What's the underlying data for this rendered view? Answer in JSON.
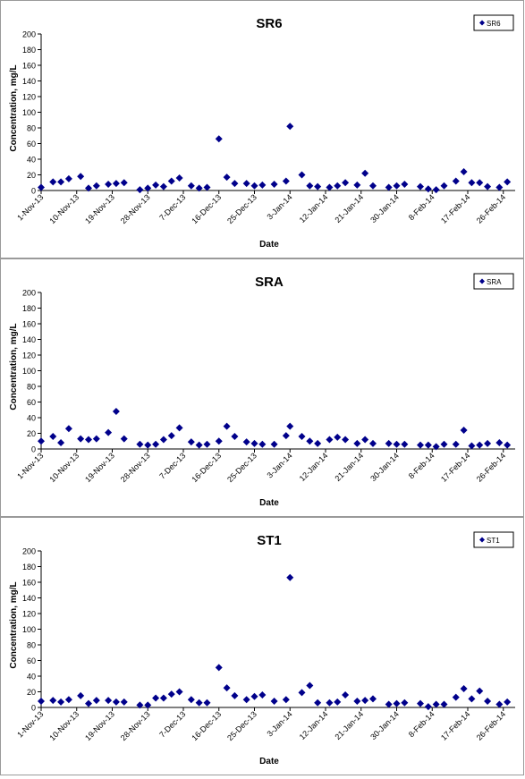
{
  "chart_data": [
    {
      "type": "scatter",
      "title": "SR6",
      "xlabel": "Date",
      "ylabel": "Concentration, mg/L",
      "ylim": [
        0,
        200
      ],
      "yticks": [
        0,
        20,
        40,
        60,
        80,
        100,
        120,
        140,
        160,
        180,
        200
      ],
      "xlim": [
        "2013-11-01",
        "2014-03-01"
      ],
      "xtick_labels": [
        "1-Nov-13",
        "10-Nov-13",
        "19-Nov-13",
        "28-Nov-13",
        "7-Dec-13",
        "16-Dec-13",
        "25-Dec-13",
        "3-Jan-14",
        "12-Jan-14",
        "21-Jan-14",
        "30-Jan-14",
        "8-Feb-14",
        "17-Feb-14",
        "26-Feb-14"
      ],
      "grid": false,
      "legend_position": "top-right",
      "marker": "diamond",
      "series_color": "#00008B",
      "series": [
        {
          "name": "SR6",
          "x": [
            "2013-11-01",
            "2013-11-04",
            "2013-11-06",
            "2013-11-08",
            "2013-11-11",
            "2013-11-13",
            "2013-11-15",
            "2013-11-18",
            "2013-11-20",
            "2013-11-22",
            "2013-11-26",
            "2013-11-28",
            "2013-11-30",
            "2013-12-02",
            "2013-12-04",
            "2013-12-06",
            "2013-12-09",
            "2013-12-11",
            "2013-12-13",
            "2013-12-16",
            "2013-12-18",
            "2013-12-20",
            "2013-12-23",
            "2013-12-25",
            "2013-12-27",
            "2013-12-30",
            "2014-01-02",
            "2014-01-03",
            "2014-01-06",
            "2014-01-08",
            "2014-01-10",
            "2014-01-13",
            "2014-01-15",
            "2014-01-17",
            "2014-01-20",
            "2014-01-22",
            "2014-01-24",
            "2014-01-28",
            "2014-01-30",
            "2014-02-01",
            "2014-02-05",
            "2014-02-07",
            "2014-02-09",
            "2014-02-11",
            "2014-02-14",
            "2014-02-16",
            "2014-02-18",
            "2014-02-20",
            "2014-02-22",
            "2014-02-25",
            "2014-02-27"
          ],
          "y": [
            4,
            11,
            11,
            15,
            18,
            3,
            6,
            8,
            9,
            10,
            1,
            3,
            7,
            5,
            12,
            16,
            6,
            3,
            4,
            66,
            17,
            9,
            9,
            6,
            7,
            8,
            12,
            82,
            20,
            6,
            5,
            4,
            6,
            10,
            7,
            22,
            6,
            4,
            6,
            8,
            5,
            2,
            1,
            6,
            12,
            24,
            10,
            10,
            5,
            4,
            11
          ]
        }
      ]
    },
    {
      "type": "scatter",
      "title": "SRA",
      "xlabel": "Date",
      "ylabel": "Concentration, mg/L",
      "ylim": [
        0,
        200
      ],
      "yticks": [
        0,
        20,
        40,
        60,
        80,
        100,
        120,
        140,
        160,
        180,
        200
      ],
      "xlim": [
        "2013-11-01",
        "2014-03-01"
      ],
      "xtick_labels": [
        "1-Nov-13",
        "10-Nov-13",
        "19-Nov-13",
        "28-Nov-13",
        "7-Dec-13",
        "16-Dec-13",
        "25-Dec-13",
        "3-Jan-14",
        "12-Jan-14",
        "21-Jan-14",
        "30-Jan-14",
        "8-Feb-14",
        "17-Feb-14",
        "26-Feb-14"
      ],
      "grid": false,
      "legend_position": "top-right",
      "marker": "diamond",
      "series_color": "#00008B",
      "series": [
        {
          "name": "SRA",
          "x": [
            "2013-11-01",
            "2013-11-04",
            "2013-11-06",
            "2013-11-08",
            "2013-11-11",
            "2013-11-13",
            "2013-11-15",
            "2013-11-18",
            "2013-11-20",
            "2013-11-22",
            "2013-11-26",
            "2013-11-28",
            "2013-11-30",
            "2013-12-02",
            "2013-12-04",
            "2013-12-06",
            "2013-12-09",
            "2013-12-11",
            "2013-12-13",
            "2013-12-16",
            "2013-12-18",
            "2013-12-20",
            "2013-12-23",
            "2013-12-25",
            "2013-12-27",
            "2013-12-30",
            "2014-01-02",
            "2014-01-03",
            "2014-01-06",
            "2014-01-08",
            "2014-01-10",
            "2014-01-13",
            "2014-01-15",
            "2014-01-17",
            "2014-01-20",
            "2014-01-22",
            "2014-01-24",
            "2014-01-28",
            "2014-01-30",
            "2014-02-01",
            "2014-02-05",
            "2014-02-07",
            "2014-02-09",
            "2014-02-11",
            "2014-02-14",
            "2014-02-16",
            "2014-02-18",
            "2014-02-20",
            "2014-02-22",
            "2014-02-25",
            "2014-02-27"
          ],
          "y": [
            10,
            16,
            8,
            26,
            13,
            12,
            13,
            21,
            48,
            13,
            6,
            5,
            6,
            12,
            17,
            27,
            9,
            5,
            6,
            10,
            29,
            16,
            9,
            7,
            6,
            6,
            17,
            29,
            16,
            10,
            7,
            12,
            15,
            12,
            7,
            12,
            7,
            7,
            6,
            6,
            5,
            5,
            3,
            6,
            6,
            24,
            4,
            5,
            7,
            8,
            5
          ]
        }
      ]
    },
    {
      "type": "scatter",
      "title": "ST1",
      "xlabel": "Date",
      "ylabel": "Concentration, mg/L",
      "ylim": [
        0,
        200
      ],
      "yticks": [
        0,
        20,
        40,
        60,
        80,
        100,
        120,
        140,
        160,
        180,
        200
      ],
      "xlim": [
        "2013-11-01",
        "2014-03-01"
      ],
      "xtick_labels": [
        "1-Nov-13",
        "10-Nov-13",
        "19-Nov-13",
        "28-Nov-13",
        "7-Dec-13",
        "16-Dec-13",
        "25-Dec-13",
        "3-Jan-14",
        "12-Jan-14",
        "21-Jan-14",
        "30-Jan-14",
        "8-Feb-14",
        "17-Feb-14",
        "26-Feb-14"
      ],
      "grid": false,
      "legend_position": "top-right",
      "marker": "diamond",
      "series_color": "#00008B",
      "series": [
        {
          "name": "ST1",
          "x": [
            "2013-11-01",
            "2013-11-04",
            "2013-11-06",
            "2013-11-08",
            "2013-11-11",
            "2013-11-13",
            "2013-11-15",
            "2013-11-18",
            "2013-11-20",
            "2013-11-22",
            "2013-11-26",
            "2013-11-28",
            "2013-11-30",
            "2013-12-02",
            "2013-12-04",
            "2013-12-06",
            "2013-12-09",
            "2013-12-11",
            "2013-12-13",
            "2013-12-16",
            "2013-12-18",
            "2013-12-20",
            "2013-12-23",
            "2013-12-25",
            "2013-12-27",
            "2013-12-30",
            "2014-01-02",
            "2014-01-03",
            "2014-01-06",
            "2014-01-08",
            "2014-01-10",
            "2014-01-13",
            "2014-01-15",
            "2014-01-17",
            "2014-01-20",
            "2014-01-22",
            "2014-01-24",
            "2014-01-28",
            "2014-01-30",
            "2014-02-01",
            "2014-02-05",
            "2014-02-07",
            "2014-02-09",
            "2014-02-11",
            "2014-02-14",
            "2014-02-16",
            "2014-02-18",
            "2014-02-20",
            "2014-02-22",
            "2014-02-25",
            "2014-02-27"
          ],
          "y": [
            8,
            9,
            7,
            10,
            15,
            5,
            9,
            9,
            7,
            7,
            3,
            3,
            12,
            12,
            17,
            20,
            10,
            6,
            6,
            51,
            25,
            15,
            10,
            14,
            16,
            8,
            10,
            166,
            19,
            28,
            6,
            6,
            7,
            16,
            8,
            9,
            11,
            4,
            5,
            6,
            5,
            1,
            4,
            4,
            13,
            24,
            11,
            21,
            8,
            4,
            7
          ]
        }
      ]
    }
  ]
}
